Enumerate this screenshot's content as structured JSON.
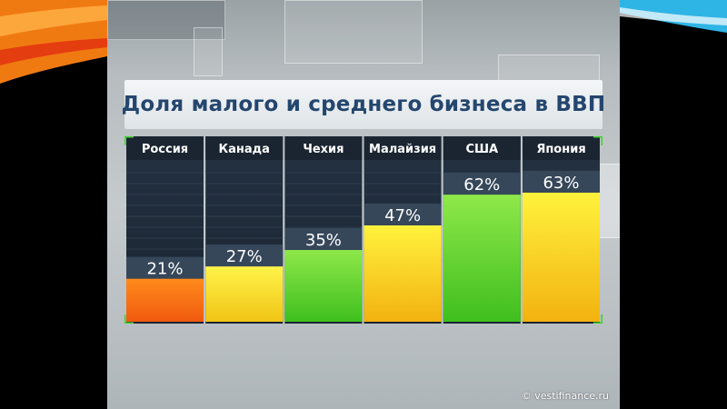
{
  "chart_data": {
    "type": "bar",
    "title": "Доля малого и среднего бизнеса в ВВП",
    "categories": [
      "Россия",
      "Канада",
      "Чехия",
      "Малайзия",
      "США",
      "Япония"
    ],
    "values": [
      21,
      27,
      35,
      47,
      62,
      63
    ],
    "value_labels": [
      "21%",
      "27%",
      "35%",
      "47%",
      "62%",
      "63%"
    ],
    "bar_colors": [
      [
        "#ff8a1c",
        "#f05a0f"
      ],
      [
        "#fff34a",
        "#f0c515"
      ],
      [
        "#8fe84a",
        "#3fbf1e"
      ],
      [
        "#fff23d",
        "#f3b210"
      ],
      [
        "#8fe84a",
        "#3fbf1e"
      ],
      [
        "#fff23d",
        "#f3b210"
      ]
    ],
    "ylim": [
      0,
      78
    ],
    "xlabel": "",
    "ylabel": ""
  },
  "watermark": "© vestifinance.ru",
  "colors": {
    "title_text": "#24466e",
    "panel_dark": "#1e2a38",
    "header_dark": "#1b2532",
    "value_box": "#36475a"
  }
}
